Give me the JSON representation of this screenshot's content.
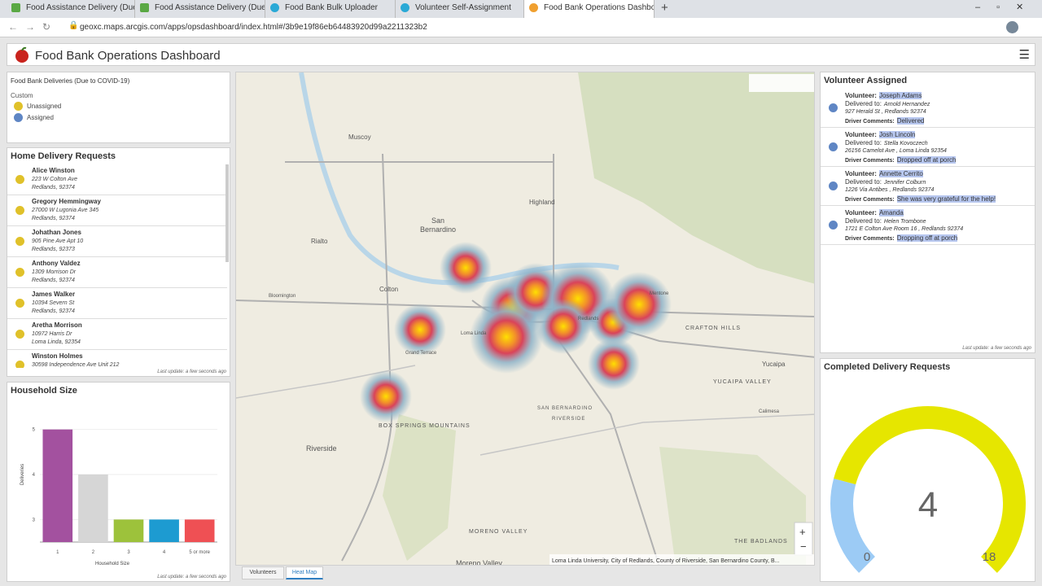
{
  "browser": {
    "tabs": [
      "Food Assistance Delivery (Due to",
      "Food Assistance Delivery (Due to",
      "Food Bank Bulk Uploader",
      "Volunteer Self-Assignment",
      "Food Bank Operations Dashboard"
    ],
    "url": "geoxc.maps.arcgis.com/apps/opsdashboard/index.html#/3b9e19f86eb64483920d99a2211323b2"
  },
  "header": {
    "title": "Food Bank Operations Dashboard"
  },
  "legend": {
    "title": "Food Bank Deliveries (Due to COVID-19)",
    "group": "Custom",
    "items": [
      "Unassigned",
      "Assigned"
    ]
  },
  "requests": {
    "title": "Home Delivery Requests",
    "items": [
      {
        "name": "Alice Winston",
        "address": "223 W Colton Ave",
        "city": "Redlands,  92374"
      },
      {
        "name": "Gregory Hemmingway",
        "address": "27000 W Lugonia Ave 345",
        "city": "Redlands,  92374"
      },
      {
        "name": "Johathan Jones",
        "address": "905 Pine Ave Apt 10",
        "city": "Redlands,  92373"
      },
      {
        "name": "Anthony Valdez",
        "address": "1309 Morrison Dr",
        "city": "Redlands,  92374"
      },
      {
        "name": "James Walker",
        "address": "10394 Severn St",
        "city": "Redlands,  92374"
      },
      {
        "name": "Aretha Morrison",
        "address": "10972 Harris Dr",
        "city": "Loma Linda,  92354"
      },
      {
        "name": "Winston Holmes",
        "address": "30598 Independence Ave Unit 212",
        "city": ""
      }
    ],
    "updated": "Last update: a few seconds ago"
  },
  "household_size": {
    "type": "bar",
    "title": "Household Size",
    "x_label": "Household Size",
    "y_label": "Deliveries",
    "categories": [
      "1",
      "2",
      "3",
      "4",
      "5 or more"
    ],
    "values": [
      5,
      4,
      3,
      3,
      3
    ],
    "colors": [
      "#a3519f",
      "#d6d6d6",
      "#9dc23b",
      "#1d9bd1",
      "#ef5054"
    ],
    "ylim": [
      2.5,
      5.5
    ],
    "yticks": [
      3,
      4,
      5
    ],
    "grid": true,
    "updated": "Last update: a few seconds ago"
  },
  "map": {
    "labels": [
      "Muscoy",
      "San",
      "Bernardino",
      "Highland",
      "Rialto",
      "Colton",
      "Bloomington",
      "Loma Linda",
      "Grand Terrace",
      "Redlands",
      "Mentone",
      "CRAFTON HILLS",
      "Yucaipa",
      "YUCAIPA VALLEY",
      "Calimesa",
      "BOX SPRINGS MOUNTAINS",
      "Riverside",
      "MORENO VALLEY",
      "Moreno Valley",
      "THE BADLANDS",
      "SAN BERNARDINO",
      "RIVERSIDE"
    ],
    "attribution": "Loma Linda University, City of Redlands, County of Riverside, San Bernardino County, B...",
    "tabs": [
      "Volunteers",
      "Heat Map"
    ]
  },
  "volunteers": {
    "title": "Volunteer Assigned",
    "labels": {
      "volunteer": "Volunteer:",
      "delivered": "Delivered to:",
      "comments": "Driver Comments:"
    },
    "items": [
      {
        "name": "Joseph Adams",
        "recipient": "Arnold Hernandez",
        "address": "927 Herald St , Redlands 92374",
        "comment": "Delivered"
      },
      {
        "name": "Josh Lincoln",
        "recipient": "Stella Kovoczech",
        "address": "26156 Camelot Ave , Loma Linda 92354",
        "comment": "Dropped off at porch"
      },
      {
        "name": "Annette Cerrito",
        "recipient": "Jennifer Colburn",
        "address": "1226 Via Antibes , Redlands 92374",
        "comment": "She was very grateful for the help!"
      },
      {
        "name": "Amanda",
        "recipient": "Helen Trombone",
        "address": "1721 E Colton Ave Room 16 , Redlands 92374",
        "comment": "Dropping off at porch"
      }
    ],
    "updated": "Last update: a few seconds ago"
  },
  "gauge": {
    "title": "Completed Delivery Requests",
    "value": 4,
    "min": 0,
    "max": 18
  }
}
